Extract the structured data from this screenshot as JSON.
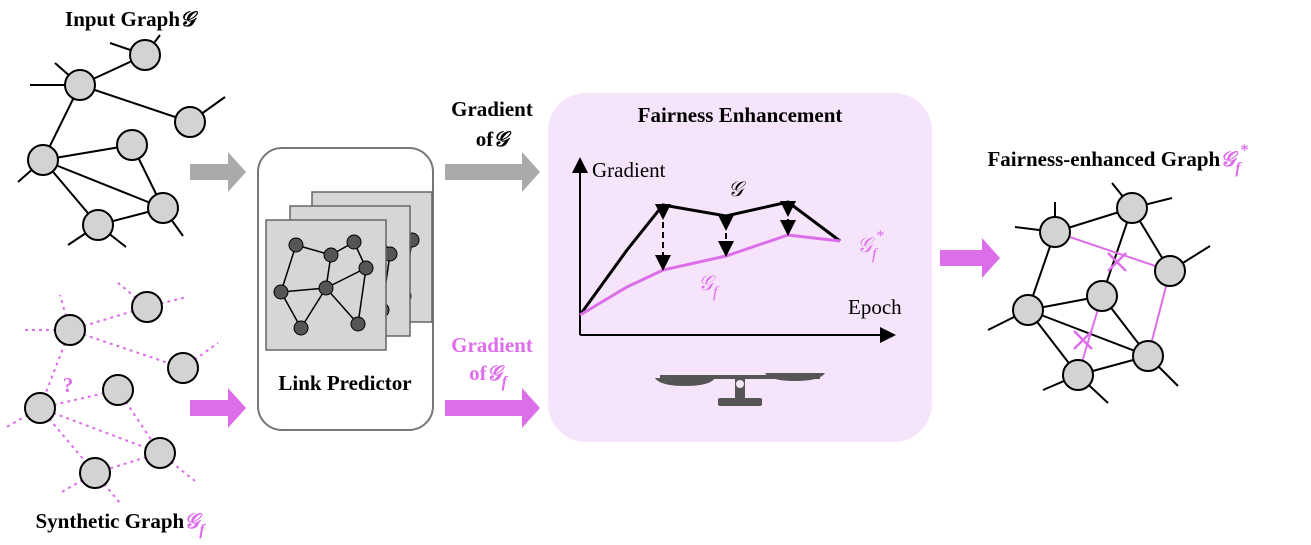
{
  "input_graph": {
    "label": "Input Graph",
    "symbol": "𝒢"
  },
  "synthetic_graph": {
    "label": "Synthetic Graph",
    "symbol": "𝒢",
    "sub": "f",
    "question": "?"
  },
  "gradient_real": {
    "line1": "Gradient",
    "line2": "of",
    "symbol": "𝒢"
  },
  "gradient_synthetic": {
    "line1": "Gradient",
    "line2": "of",
    "symbol": "𝒢",
    "sub": "f"
  },
  "link_predictor": "Link Predictor",
  "fairness_enhancement": {
    "title": "Fairness Enhancement",
    "y_axis": "Gradient",
    "x_axis": "Epoch",
    "real_curve": "𝒢",
    "fair_curve": {
      "symbol": "𝒢",
      "sub": "f",
      "sup": "*"
    },
    "synthetic_curve": {
      "symbol": "𝒢",
      "sub": "f"
    }
  },
  "output_graph": {
    "label": "Fairness-enhanced Graph",
    "symbol": "𝒢",
    "sub": "f",
    "sup": "*"
  }
}
